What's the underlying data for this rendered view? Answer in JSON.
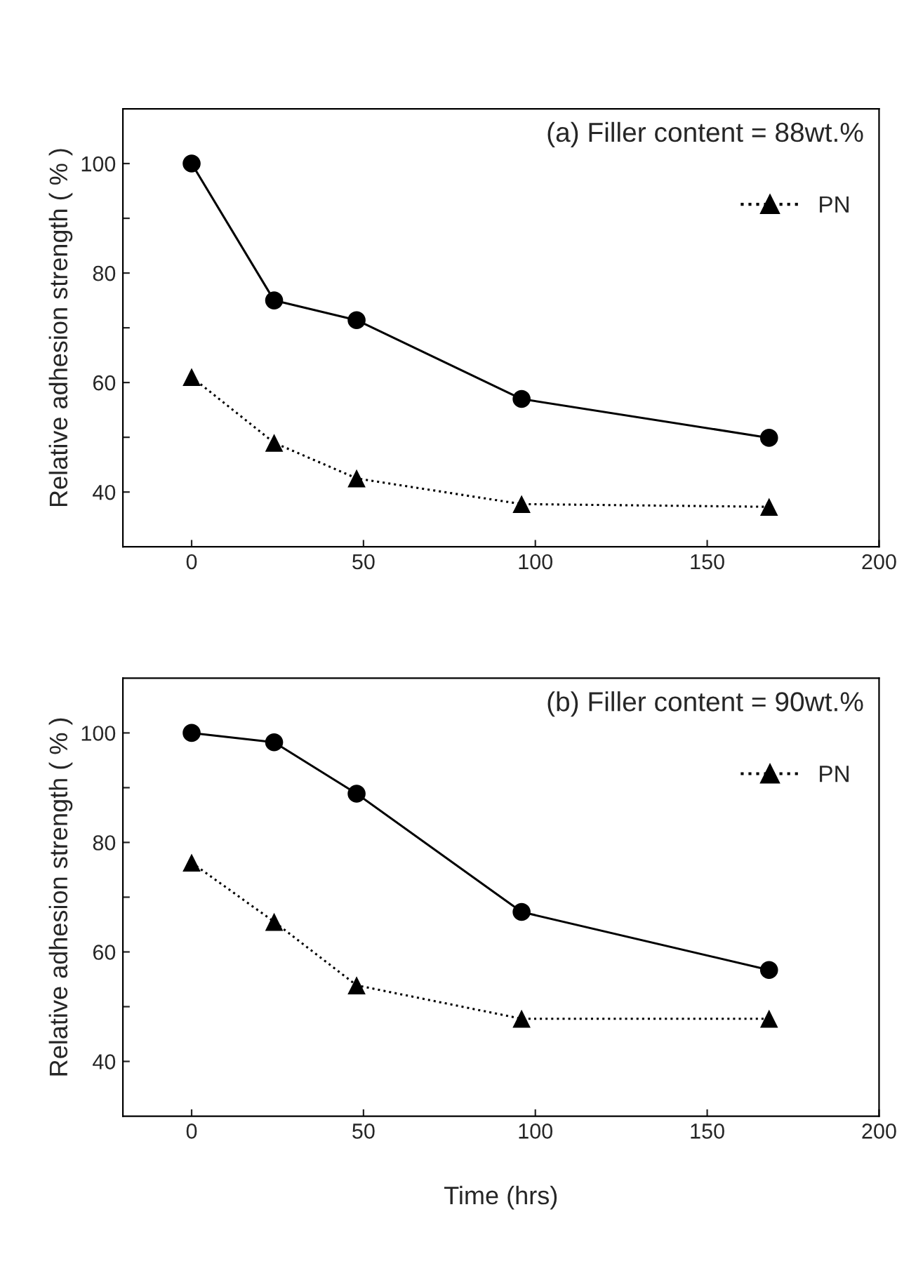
{
  "chart_data": [
    {
      "type": "line",
      "title": "(a) Filler content = 88wt.%",
      "ylabel": "Relative adhesion strength ( % )",
      "x": [
        0,
        24,
        48,
        96,
        168
      ],
      "xlim": [
        -20,
        200
      ],
      "xticks": [
        0,
        50,
        100,
        150,
        200
      ],
      "ylim": [
        30,
        110
      ],
      "yticks": [
        40,
        {
          "value": 50,
          "label": null
        },
        60,
        {
          "value": 70,
          "label": null
        },
        80,
        {
          "value": 90,
          "label": null
        },
        100
      ],
      "legend": "top right",
      "grid": false,
      "series": [
        {
          "color": "#000000",
          "marker": "circle",
          "line_style": "solid",
          "values": [
            100,
            75.0,
            71.4,
            57.0,
            49.9
          ]
        },
        {
          "name": "PN",
          "color": "#000000",
          "marker": "triangle",
          "line_style": "dotted",
          "values": [
            61,
            49.0,
            42.5,
            37.8,
            37.3
          ]
        }
      ]
    },
    {
      "type": "line",
      "title": "(b) Filler content = 90wt.%",
      "ylabel": "Relative adhesion strength ( % )",
      "xlabel": "Time (hrs)",
      "x": [
        0,
        24,
        48,
        96,
        168
      ],
      "xlim": [
        -20,
        200
      ],
      "xticks": [
        0,
        50,
        100,
        150,
        200
      ],
      "ylim": [
        30,
        110
      ],
      "yticks": [
        40,
        {
          "value": 50,
          "label": null
        },
        60,
        {
          "value": 70,
          "label": null
        },
        80,
        {
          "value": 90,
          "label": null
        },
        100
      ],
      "legend": "top right",
      "grid": false,
      "series": [
        {
          "color": "#000000",
          "marker": "circle",
          "line_style": "solid",
          "values": [
            100,
            98.3,
            88.9,
            67.3,
            56.7
          ]
        },
        {
          "name": "PN",
          "color": "#000000",
          "marker": "triangle",
          "line_style": "dotted",
          "values": [
            76.3,
            65.5,
            53.9,
            47.8,
            47.8
          ]
        }
      ]
    }
  ]
}
